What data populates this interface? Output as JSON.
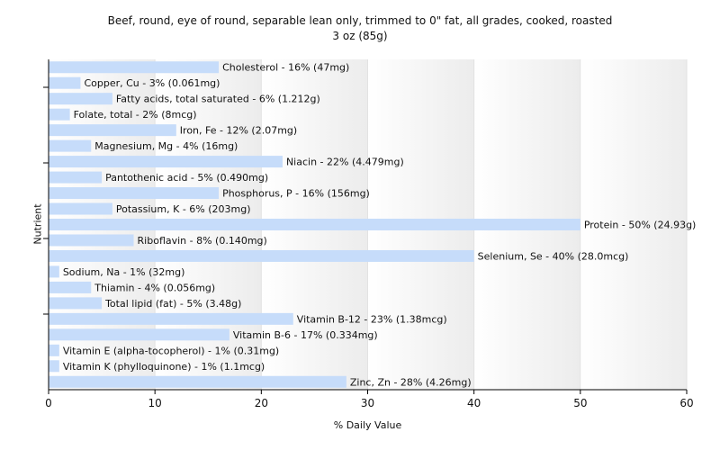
{
  "chart_data": {
    "type": "bar",
    "orientation": "horizontal",
    "title": "Beef, round, eye of round, separable lean only, trimmed to 0\" fat, all grades, cooked, roasted",
    "subtitle": "3 oz (85g)",
    "xlabel": "% Daily Value",
    "ylabel": "Nutrient",
    "xlim": [
      0,
      60
    ],
    "xticks": [
      0,
      10,
      20,
      30,
      40,
      50,
      60
    ],
    "grid": true,
    "legend": "none",
    "bar_color": "#c6dcfa",
    "categories": [
      "Cholesterol",
      "Copper, Cu",
      "Fatty acids, total saturated",
      "Folate, total",
      "Iron, Fe",
      "Magnesium, Mg",
      "Niacin",
      "Pantothenic acid",
      "Phosphorus, P",
      "Potassium, K",
      "Protein",
      "Riboflavin",
      "Selenium, Se",
      "Sodium, Na",
      "Thiamin",
      "Total lipid (fat)",
      "Vitamin B-12",
      "Vitamin B-6",
      "Vitamin E (alpha-tocopherol)",
      "Vitamin K (phylloquinone)",
      "Zinc, Zn"
    ],
    "values": [
      16,
      3,
      6,
      2,
      12,
      4,
      22,
      5,
      16,
      6,
      50,
      8,
      40,
      1,
      4,
      5,
      23,
      17,
      1,
      1,
      28
    ],
    "labels": [
      "Cholesterol - 16% (47mg)",
      "Copper, Cu - 3% (0.061mg)",
      "Fatty acids, total saturated - 6% (1.212g)",
      "Folate, total - 2% (8mcg)",
      "Iron, Fe - 12% (2.07mg)",
      "Magnesium, Mg - 4% (16mg)",
      "Niacin - 22% (4.479mg)",
      "Pantothenic acid - 5% (0.490mg)",
      "Phosphorus, P - 16% (156mg)",
      "Potassium, K - 6% (203mg)",
      "Protein - 50% (24.93g)",
      "Riboflavin - 8% (0.140mg)",
      "Selenium, Se - 40% (28.0mcg)",
      "Sodium, Na - 1% (32mg)",
      "Thiamin - 4% (0.056mg)",
      "Total lipid (fat) - 5% (3.48g)",
      "Vitamin B-12 - 23% (1.38mcg)",
      "Vitamin B-6 - 17% (0.334mg)",
      "Vitamin E (alpha-tocopherol) - 1% (0.31mg)",
      "Vitamin K (phylloquinone) - 1% (1.1mcg)",
      "Zinc, Zn - 28% (4.26mg)"
    ]
  }
}
